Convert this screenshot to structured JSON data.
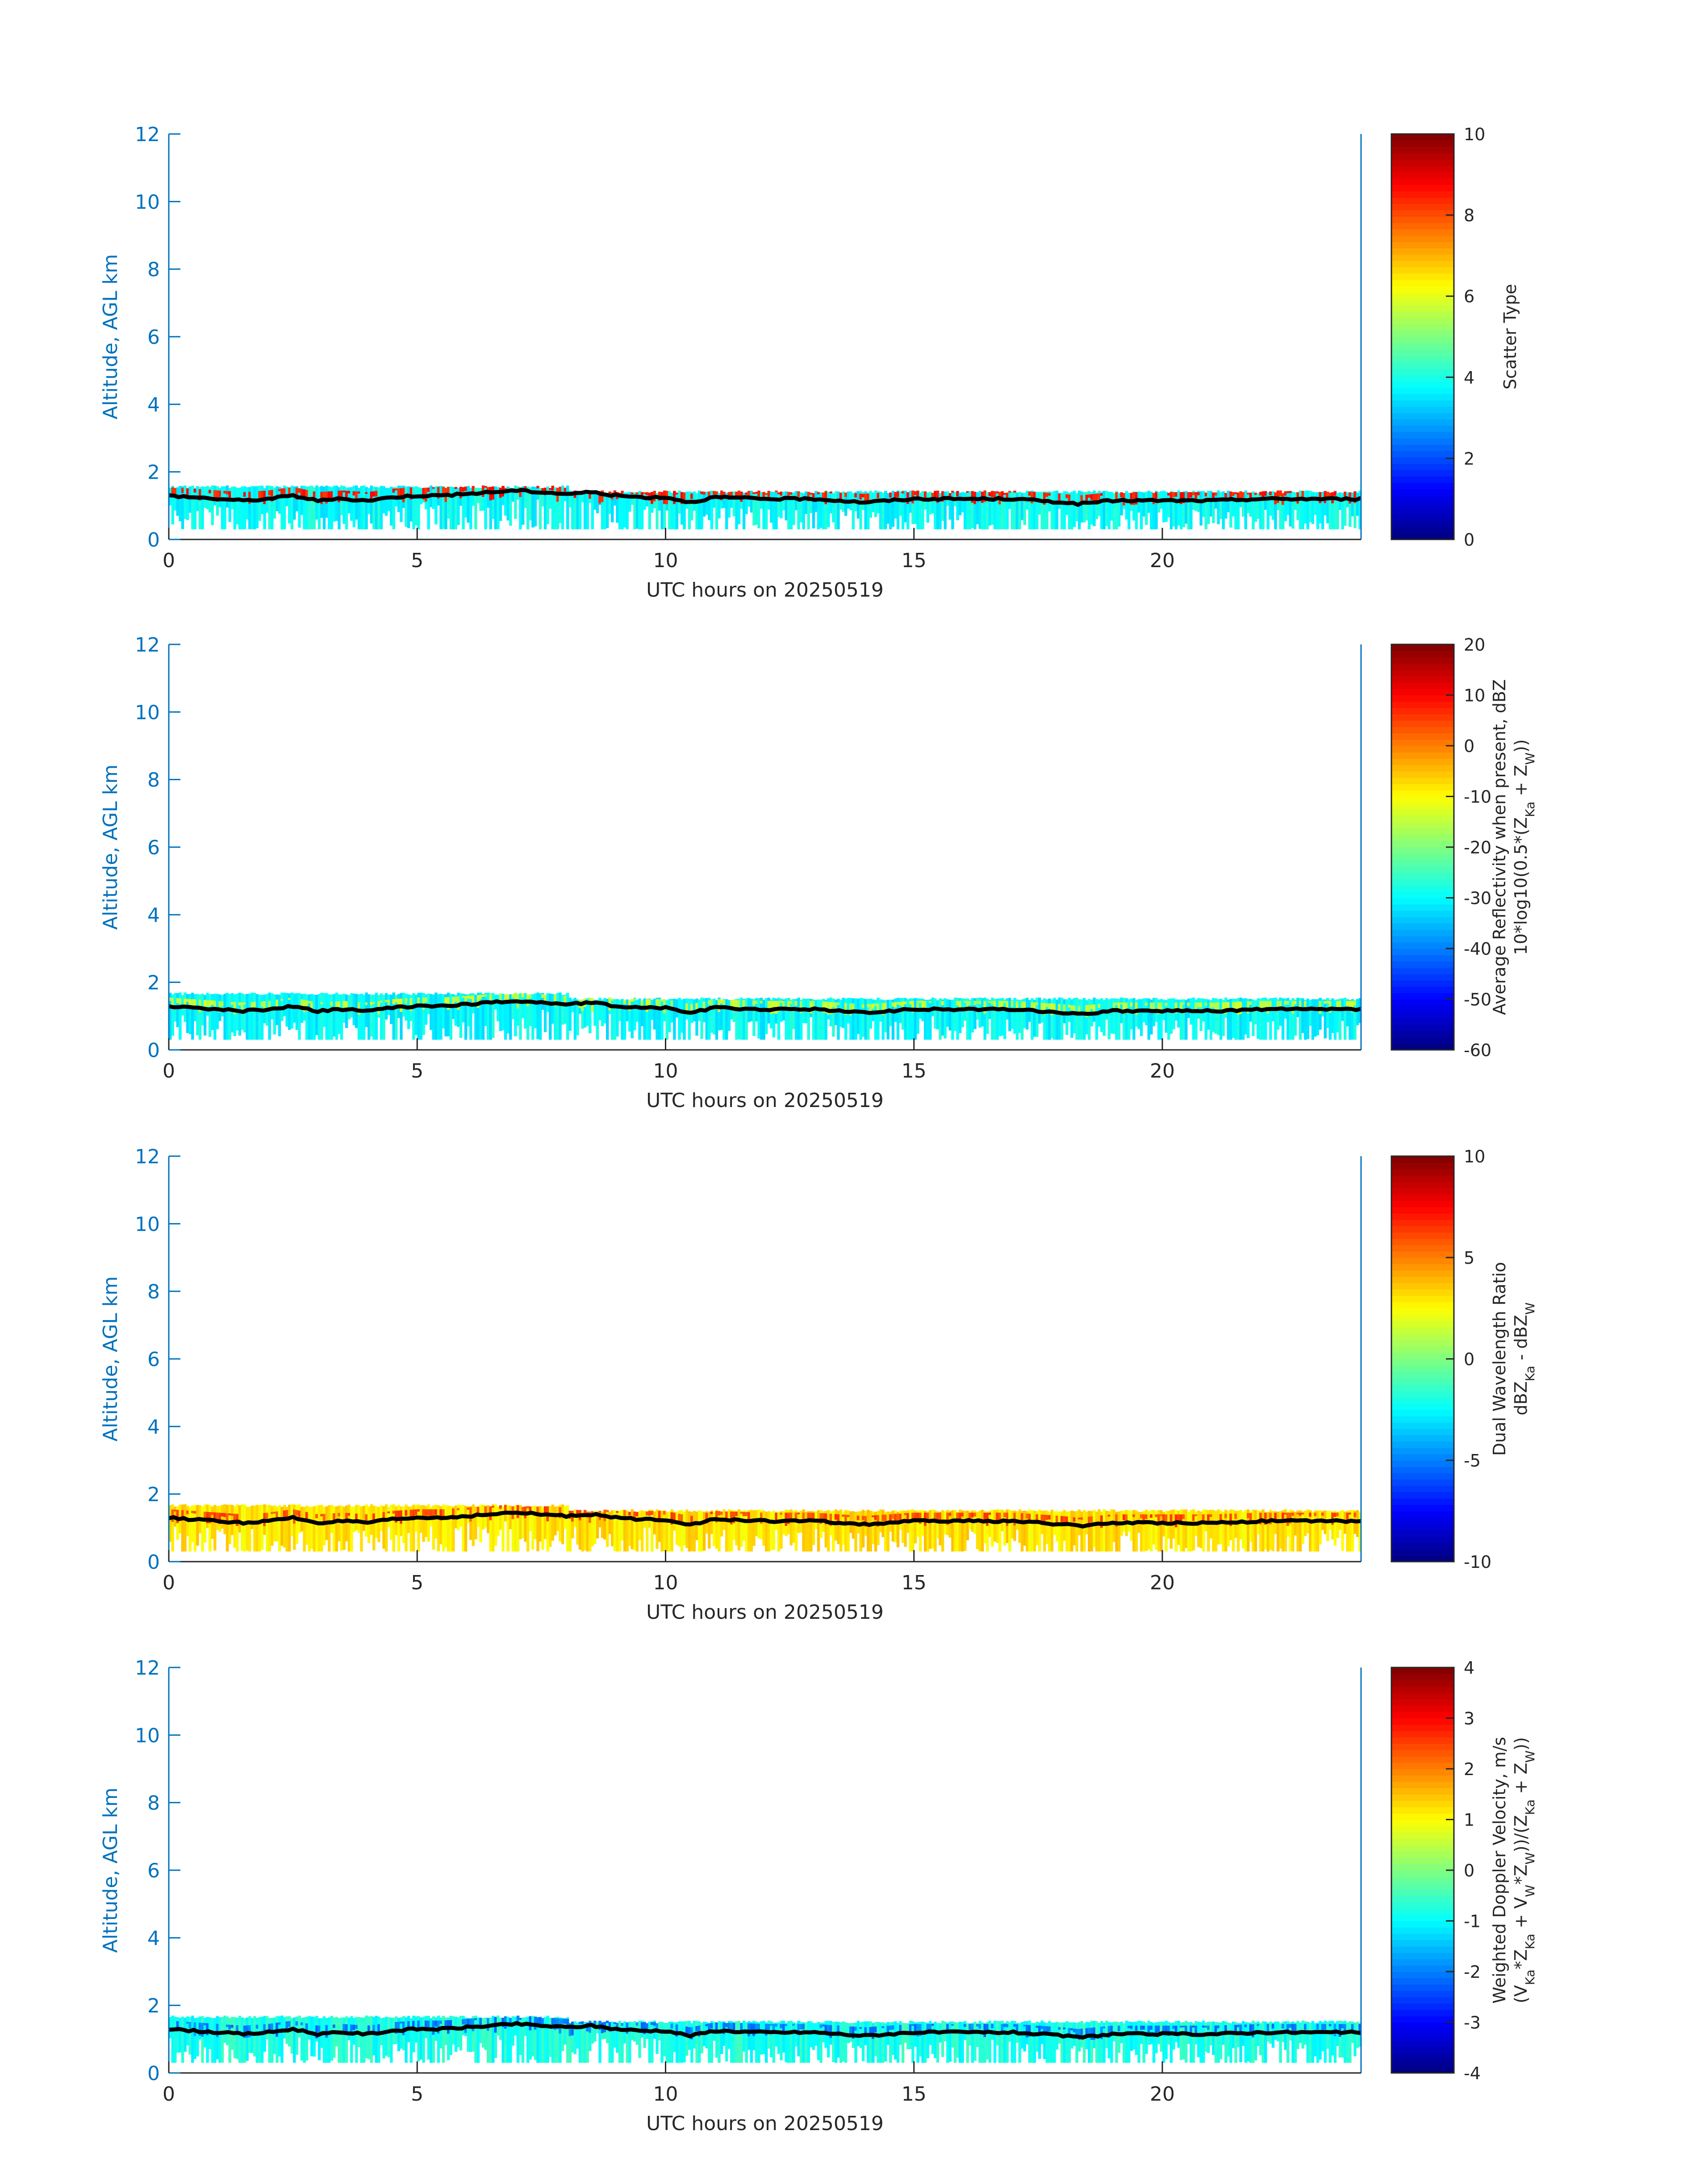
{
  "chart_data": [
    {
      "type": "heatmap",
      "xlabel": "UTC hours on 20250519",
      "ylabel": "Altitude, AGL km",
      "xlim": [
        0,
        24
      ],
      "ylim": [
        0,
        12
      ],
      "xticks": [
        0,
        5,
        10,
        15,
        20
      ],
      "yticks": [
        0,
        2,
        4,
        6,
        8,
        10,
        12
      ],
      "colorbar": {
        "label_lines": [
          "Scatter Type"
        ],
        "clim": [
          0,
          10
        ],
        "ticks": [
          0,
          2,
          4,
          6,
          8,
          10
        ],
        "colormap": "jet"
      },
      "fill": {
        "top_km": 1.6,
        "bottom_km": 0.3,
        "dominant_value": 3.8,
        "secondary_value": 8.5
      },
      "cloud_base_line": {
        "color": "#000000",
        "x": [
          0,
          1,
          1.5,
          2,
          2.5,
          3,
          3.5,
          4,
          4.5,
          5,
          5.5,
          6,
          6.5,
          7,
          7.5,
          8,
          8.5,
          9,
          9.5,
          10,
          10.5,
          11,
          12,
          13,
          13.5,
          14,
          15,
          16,
          17,
          17.5,
          18,
          18.3,
          19,
          20,
          21,
          22,
          23,
          24
        ],
        "y": [
          1.3,
          1.2,
          1.15,
          1.2,
          1.3,
          1.15,
          1.2,
          1.15,
          1.25,
          1.3,
          1.3,
          1.35,
          1.4,
          1.45,
          1.4,
          1.35,
          1.4,
          1.3,
          1.25,
          1.25,
          1.1,
          1.25,
          1.2,
          1.2,
          1.15,
          1.1,
          1.2,
          1.2,
          1.2,
          1.15,
          1.1,
          1.05,
          1.15,
          1.15,
          1.15,
          1.2,
          1.2,
          1.2
        ]
      }
    },
    {
      "type": "heatmap",
      "xlabel": "UTC hours on 20250519",
      "ylabel": "Altitude, AGL km",
      "xlim": [
        0,
        24
      ],
      "ylim": [
        0,
        12
      ],
      "xticks": [
        0,
        5,
        10,
        15,
        20
      ],
      "yticks": [
        0,
        2,
        4,
        6,
        8,
        10,
        12
      ],
      "colorbar": {
        "label_lines": [
          "Average Reflectivity when present, dBZ",
          "10*log10(0.5*(Z",
          "Ka",
          " + Z",
          "W",
          "))"
        ],
        "clim": [
          -60,
          20
        ],
        "ticks": [
          -60,
          -50,
          -40,
          -30,
          -20,
          -10,
          0,
          10,
          20
        ],
        "colormap": "jet"
      },
      "fill": {
        "top_km": 1.7,
        "bottom_km": 0.3,
        "dominant_value": -30,
        "secondary_value": -15
      },
      "cloud_base_line": {
        "color": "#000000",
        "x": [
          0,
          1,
          1.5,
          2,
          2.5,
          3,
          3.5,
          4,
          4.5,
          5,
          5.5,
          6,
          6.5,
          7,
          7.5,
          8,
          8.5,
          9,
          9.5,
          10,
          10.5,
          11,
          12,
          13,
          13.5,
          14,
          15,
          16,
          17,
          17.5,
          18,
          18.3,
          19,
          20,
          21,
          22,
          23,
          24
        ],
        "y": [
          1.3,
          1.2,
          1.15,
          1.2,
          1.3,
          1.15,
          1.2,
          1.15,
          1.25,
          1.3,
          1.3,
          1.35,
          1.4,
          1.45,
          1.4,
          1.35,
          1.4,
          1.3,
          1.25,
          1.25,
          1.1,
          1.25,
          1.2,
          1.2,
          1.15,
          1.1,
          1.2,
          1.2,
          1.2,
          1.15,
          1.1,
          1.05,
          1.15,
          1.15,
          1.15,
          1.2,
          1.2,
          1.2
        ]
      }
    },
    {
      "type": "heatmap",
      "xlabel": "UTC hours on 20250519",
      "ylabel": "Altitude, AGL km",
      "xlim": [
        0,
        24
      ],
      "ylim": [
        0,
        12
      ],
      "xticks": [
        0,
        5,
        10,
        15,
        20
      ],
      "yticks": [
        0,
        2,
        4,
        6,
        8,
        10,
        12
      ],
      "colorbar": {
        "label_lines": [
          "Dual Wavelength Ratio",
          "dBZ",
          "Ka",
          " - dBZ",
          "W"
        ],
        "clim": [
          -10,
          10
        ],
        "ticks": [
          -10,
          -5,
          0,
          5,
          10
        ],
        "colormap": "jet"
      },
      "fill": {
        "top_km": 1.7,
        "bottom_km": 0.3,
        "dominant_value": 3.0,
        "secondary_value": 6.0
      },
      "cloud_base_line": {
        "color": "#000000",
        "x": [
          0,
          1,
          1.5,
          2,
          2.5,
          3,
          3.5,
          4,
          4.5,
          5,
          5.5,
          6,
          6.5,
          7,
          7.5,
          8,
          8.5,
          9,
          9.5,
          10,
          10.5,
          11,
          12,
          13,
          13.5,
          14,
          15,
          16,
          17,
          17.5,
          18,
          18.3,
          19,
          20,
          21,
          22,
          23,
          24
        ],
        "y": [
          1.3,
          1.2,
          1.15,
          1.2,
          1.3,
          1.15,
          1.2,
          1.15,
          1.25,
          1.3,
          1.3,
          1.35,
          1.4,
          1.45,
          1.4,
          1.35,
          1.4,
          1.3,
          1.25,
          1.25,
          1.1,
          1.25,
          1.2,
          1.2,
          1.15,
          1.1,
          1.2,
          1.2,
          1.2,
          1.15,
          1.1,
          1.05,
          1.15,
          1.15,
          1.15,
          1.2,
          1.2,
          1.2
        ]
      }
    },
    {
      "type": "heatmap",
      "xlabel": "UTC hours on 20250519",
      "ylabel": "Altitude, AGL km",
      "xlim": [
        0,
        24
      ],
      "ylim": [
        0,
        12
      ],
      "xticks": [
        0,
        5,
        10,
        15,
        20
      ],
      "yticks": [
        0,
        2,
        4,
        6,
        8,
        10,
        12
      ],
      "colorbar": {
        "label_lines": [
          "Weighted Doppler Velocity, m/s",
          "(V",
          "Ka",
          "*Z",
          "Ka",
          " + V",
          "W",
          "*Z",
          "W",
          "))/(Z",
          "Ka",
          " + Z",
          "W",
          "))"
        ],
        "clim": [
          -4,
          4
        ],
        "ticks": [
          -4,
          -3,
          -2,
          -1,
          0,
          1,
          2,
          3,
          4
        ],
        "colormap": "jet"
      },
      "fill": {
        "top_km": 1.7,
        "bottom_km": 0.3,
        "dominant_value": -0.8,
        "secondary_value": -2.0
      },
      "cloud_base_line": {
        "color": "#000000",
        "x": [
          0,
          1,
          1.5,
          2,
          2.5,
          3,
          3.5,
          4,
          4.5,
          5,
          5.5,
          6,
          6.5,
          7,
          7.5,
          8,
          8.5,
          9,
          9.5,
          10,
          10.5,
          11,
          12,
          13,
          13.5,
          14,
          15,
          16,
          17,
          17.5,
          18,
          18.3,
          19,
          20,
          21,
          22,
          23,
          24
        ],
        "y": [
          1.3,
          1.2,
          1.15,
          1.2,
          1.3,
          1.15,
          1.2,
          1.15,
          1.25,
          1.3,
          1.3,
          1.35,
          1.4,
          1.45,
          1.4,
          1.35,
          1.4,
          1.3,
          1.25,
          1.25,
          1.1,
          1.25,
          1.2,
          1.2,
          1.15,
          1.1,
          1.2,
          1.2,
          1.2,
          1.15,
          1.1,
          1.05,
          1.15,
          1.15,
          1.15,
          1.2,
          1.2,
          1.2
        ]
      }
    }
  ],
  "colors": {
    "axis": "#0072bd",
    "text": "#262626",
    "line": "#000000",
    "background": "#ffffff"
  }
}
